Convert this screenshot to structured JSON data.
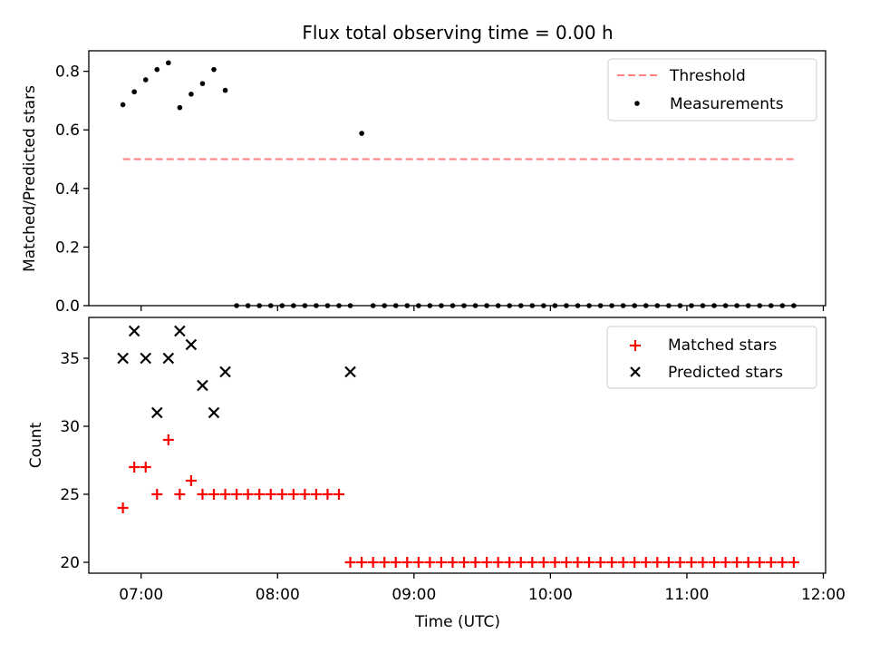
{
  "chart_data": [
    {
      "type": "scatter",
      "title": "Flux total observing time = 0.00 h",
      "ylabel": "Matched/Predicted stars",
      "ylim": [
        0,
        0.87
      ],
      "yticks": [
        0.0,
        0.2,
        0.4,
        0.6,
        0.8
      ],
      "ytick_labels": [
        "0.0",
        "0.2",
        "0.4",
        "0.6",
        "0.8"
      ],
      "legend_position": "upper-right",
      "threshold": {
        "name": "Threshold",
        "value": 0.5,
        "x_start": "06:52",
        "x_end": "11:48",
        "color": "#ff7f7f",
        "style": "dashed"
      },
      "series": [
        {
          "name": "Measurements",
          "marker": "dot",
          "color": "#000000",
          "x": [
            "06:52",
            "06:57",
            "07:02",
            "07:07",
            "07:12",
            "07:17",
            "07:22",
            "07:27",
            "07:32",
            "07:37",
            "07:42",
            "07:47",
            "07:52",
            "07:57",
            "08:02",
            "08:07",
            "08:12",
            "08:17",
            "08:22",
            "08:27",
            "08:32",
            "08:37",
            "08:42",
            "08:47",
            "08:52",
            "08:57",
            "09:02",
            "09:07",
            "09:12",
            "09:17",
            "09:22",
            "09:27",
            "09:32",
            "09:37",
            "09:42",
            "09:47",
            "09:52",
            "09:57",
            "10:02",
            "10:07",
            "10:12",
            "10:17",
            "10:22",
            "10:27",
            "10:32",
            "10:37",
            "10:42",
            "10:47",
            "10:52",
            "10:57",
            "11:02",
            "11:07",
            "11:12",
            "11:17",
            "11:22",
            "11:27",
            "11:32",
            "11:37",
            "11:42",
            "11:47"
          ],
          "y": [
            0.686,
            0.73,
            0.771,
            0.806,
            0.829,
            0.676,
            0.722,
            0.758,
            0.806,
            0.735,
            0,
            0,
            0,
            0,
            0,
            0,
            0,
            0,
            0,
            0,
            0,
            0.588,
            0,
            0,
            0,
            0,
            0,
            0,
            0,
            0,
            0,
            0,
            0,
            0,
            0,
            0,
            0,
            0,
            0,
            0,
            0,
            0,
            0,
            0,
            0,
            0,
            0,
            0,
            0,
            0,
            0,
            0,
            0,
            0,
            0,
            0,
            0,
            0,
            0,
            0
          ]
        }
      ]
    },
    {
      "type": "scatter",
      "ylabel": "Count",
      "xlabel": "Time (UTC)",
      "ylim": [
        19.2,
        38.0
      ],
      "yticks": [
        20,
        25,
        30,
        35
      ],
      "ytick_labels": [
        "20",
        "25",
        "30",
        "35"
      ],
      "xlim": [
        "06:37",
        "12:01"
      ],
      "xticks": [
        "07:00",
        "08:00",
        "09:00",
        "10:00",
        "11:00",
        "12:00"
      ],
      "xtick_labels": [
        "07:00",
        "08:00",
        "09:00",
        "10:00",
        "11:00",
        "12:00"
      ],
      "legend_position": "upper-right",
      "series": [
        {
          "name": "Matched stars",
          "marker": "plus",
          "color": "#ff0000",
          "x": [
            "06:52",
            "06:57",
            "07:02",
            "07:07",
            "07:12",
            "07:17",
            "07:22",
            "07:27",
            "07:32",
            "07:37",
            "07:42",
            "07:47",
            "07:52",
            "07:57",
            "08:02",
            "08:07",
            "08:12",
            "08:17",
            "08:22",
            "08:27",
            "08:32",
            "08:37",
            "08:42",
            "08:47",
            "08:52",
            "08:57",
            "09:02",
            "09:07",
            "09:12",
            "09:17",
            "09:22",
            "09:27",
            "09:32",
            "09:37",
            "09:42",
            "09:47",
            "09:52",
            "09:57",
            "10:02",
            "10:07",
            "10:12",
            "10:17",
            "10:22",
            "10:27",
            "10:32",
            "10:37",
            "10:42",
            "10:47",
            "10:52",
            "10:57",
            "11:02",
            "11:07",
            "11:12",
            "11:17",
            "11:22",
            "11:27",
            "11:32",
            "11:37",
            "11:42",
            "11:47"
          ],
          "y": [
            24,
            27,
            27,
            25,
            29,
            25,
            26,
            25,
            25,
            25,
            25,
            25,
            25,
            25,
            25,
            25,
            25,
            25,
            25,
            25,
            20,
            20,
            20,
            20,
            20,
            20,
            20,
            20,
            20,
            20,
            20,
            20,
            20,
            20,
            20,
            20,
            20,
            20,
            20,
            20,
            20,
            20,
            20,
            20,
            20,
            20,
            20,
            20,
            20,
            20,
            20,
            20,
            20,
            20,
            20,
            20,
            20,
            20,
            20,
            20
          ]
        },
        {
          "name": "Predicted stars",
          "marker": "x",
          "color": "#000000",
          "x": [
            "06:52",
            "06:57",
            "07:02",
            "07:07",
            "07:12",
            "07:17",
            "07:22",
            "07:27",
            "07:32",
            "07:37",
            "08:32"
          ],
          "y": [
            35,
            37,
            35,
            31,
            35,
            37,
            36,
            33,
            31,
            34,
            34
          ]
        }
      ]
    }
  ]
}
